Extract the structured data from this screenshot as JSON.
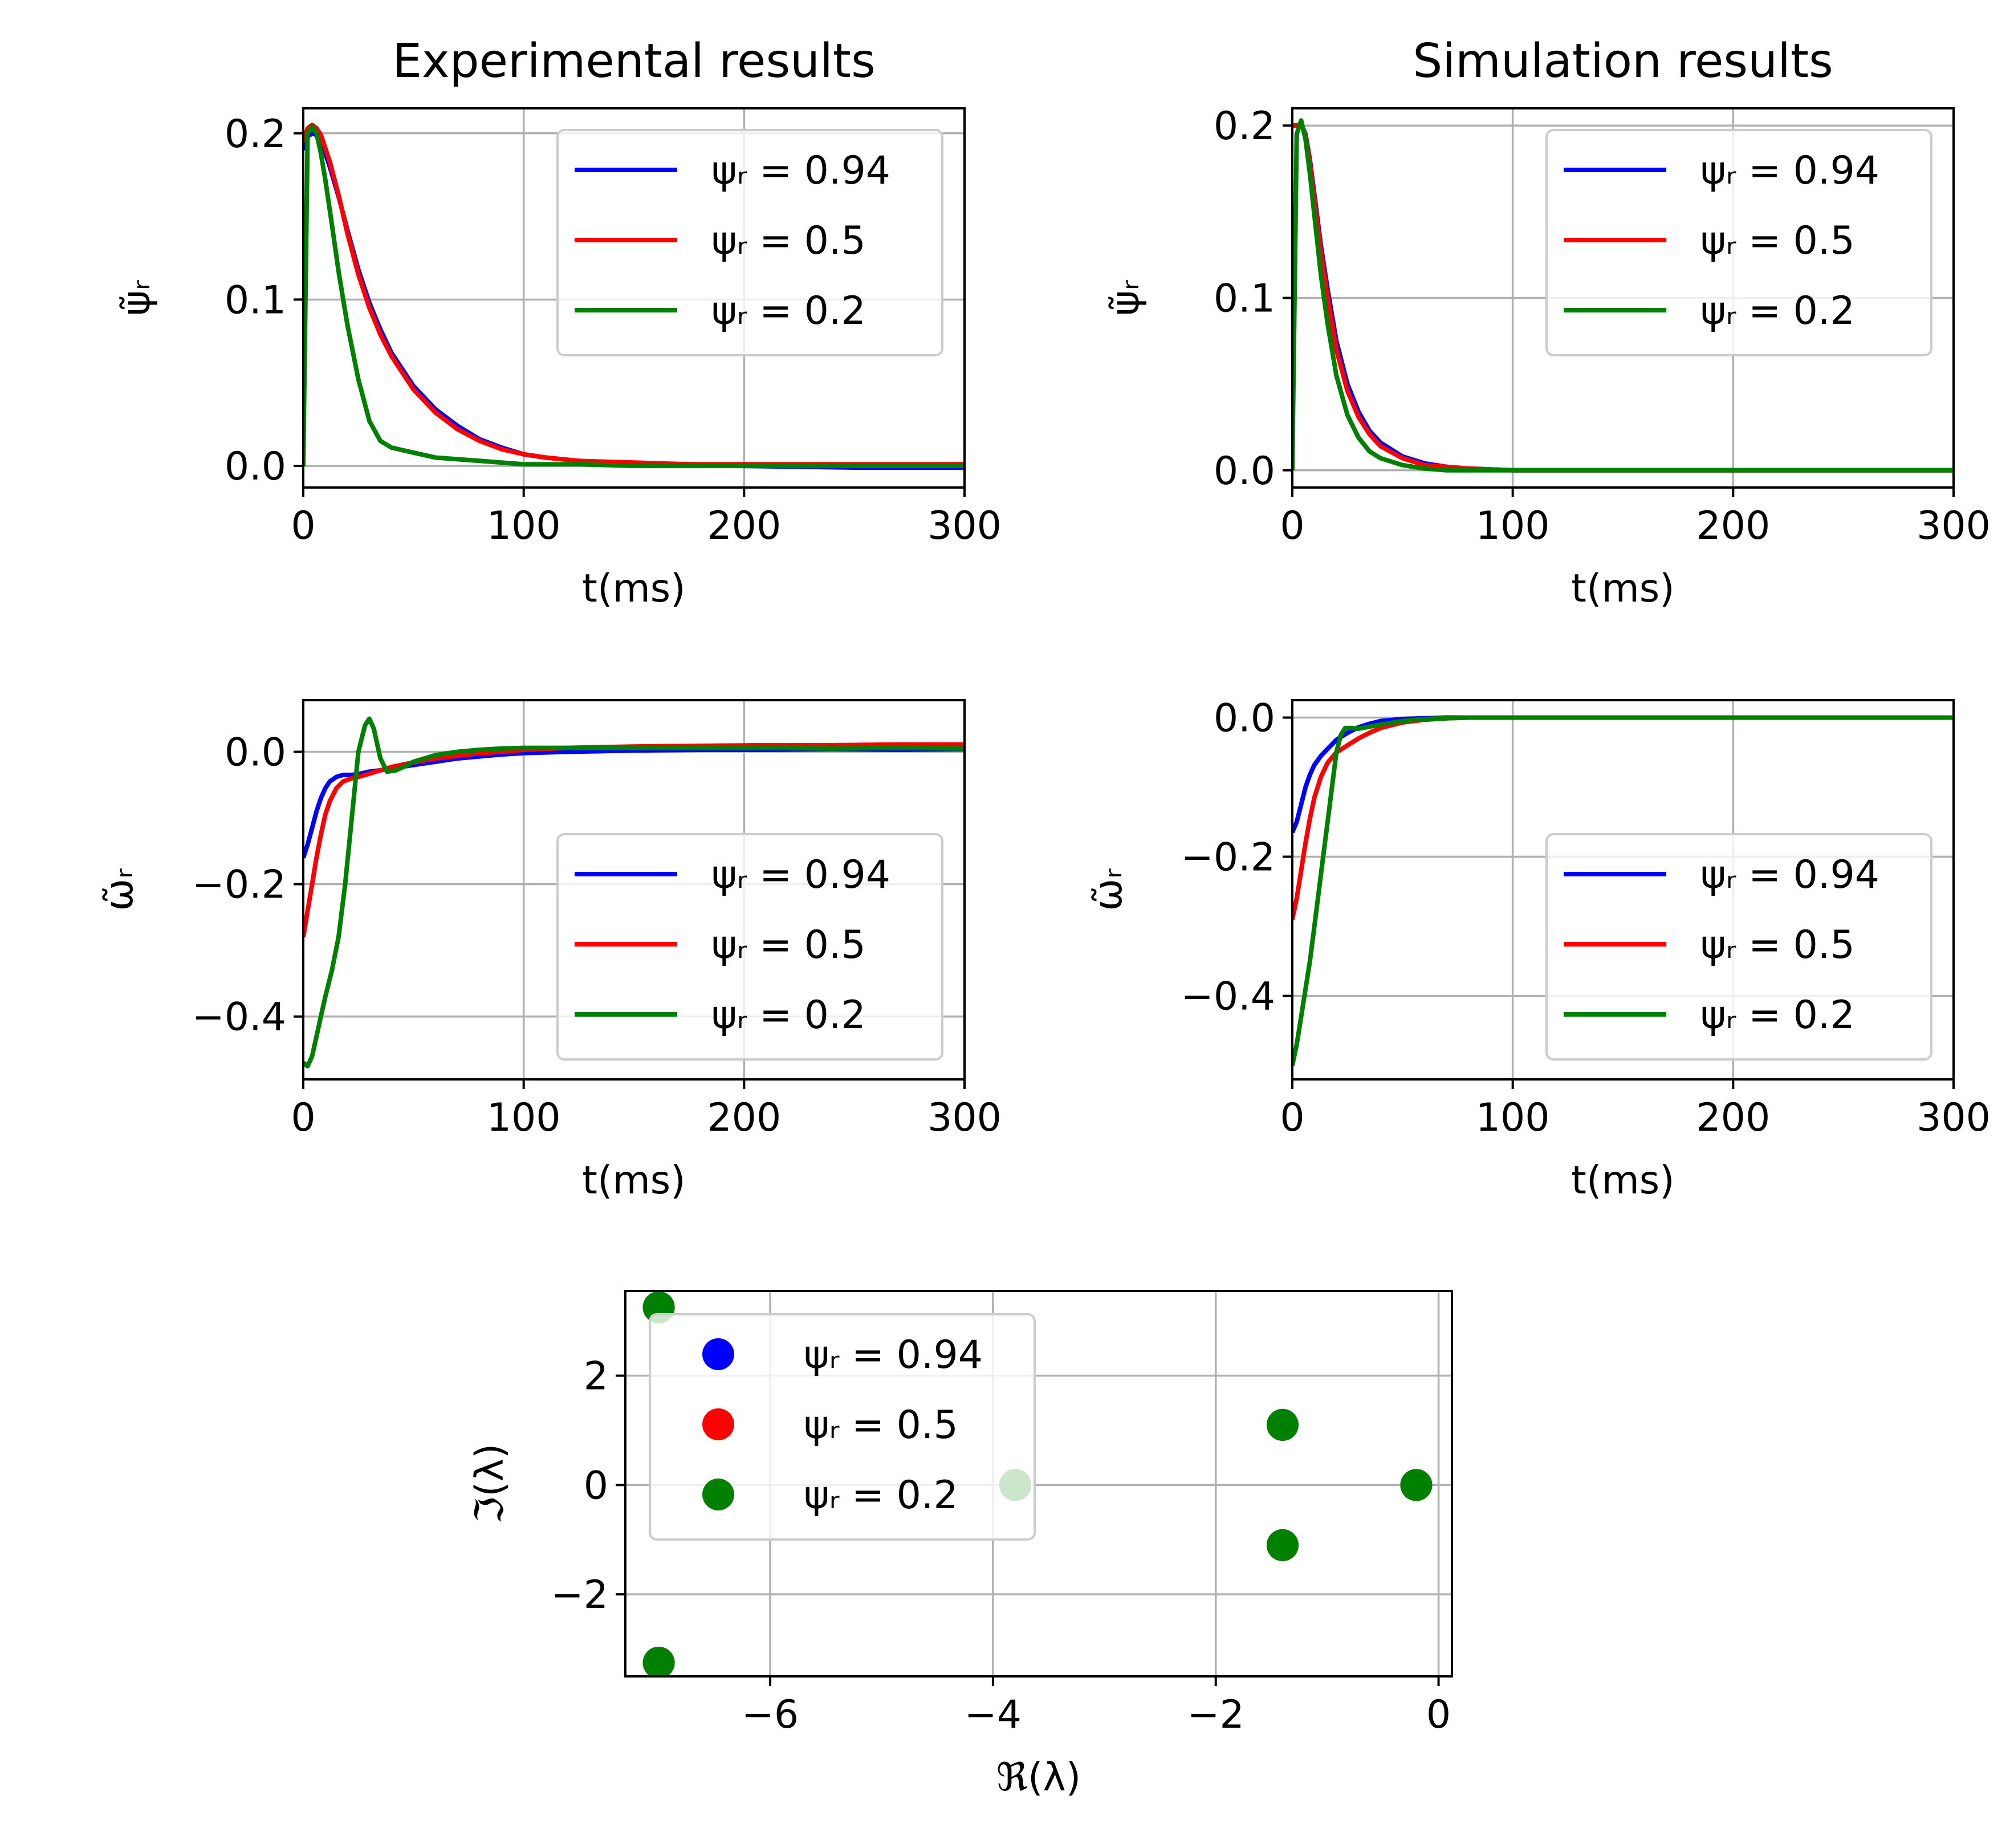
{
  "chart_data": [
    {
      "id": "exp-psi",
      "type": "line",
      "title": "Experimental results",
      "xlabel": "t(ms)",
      "ylabel": "ψ̃ᵣ",
      "xlim": [
        0,
        300
      ],
      "ylim": [
        -0.013,
        0.215
      ],
      "xticks": [
        0,
        100,
        200,
        300
      ],
      "xtick_labels": [
        "0",
        "100",
        "200",
        "300"
      ],
      "yticks": [
        0.0,
        0.1,
        0.2
      ],
      "ytick_labels": [
        "0.0",
        "0.1",
        "0.2"
      ],
      "grid": true,
      "legend_position": "top-right",
      "series": [
        {
          "name": "ψᵣ = 0.94",
          "color": "#0000ff",
          "x": [
            0,
            2,
            4,
            6,
            8,
            12,
            16,
            20,
            25,
            30,
            35,
            40,
            50,
            60,
            70,
            80,
            90,
            100,
            110,
            125,
            150,
            175,
            200,
            250,
            300
          ],
          "y": [
            0.19,
            0.198,
            0.2,
            0.199,
            0.196,
            0.18,
            0.162,
            0.142,
            0.118,
            0.098,
            0.082,
            0.068,
            0.048,
            0.034,
            0.024,
            0.016,
            0.011,
            0.007,
            0.005,
            0.003,
            0.001,
            0.0005,
            0.0,
            -0.001,
            -0.001
          ]
        },
        {
          "name": "ψᵣ = 0.5",
          "color": "#ff0000",
          "x": [
            0,
            2,
            4,
            6,
            8,
            12,
            16,
            20,
            25,
            30,
            35,
            40,
            50,
            60,
            70,
            80,
            90,
            100,
            110,
            125,
            150,
            175,
            200,
            250,
            300
          ],
          "y": [
            0.195,
            0.203,
            0.205,
            0.203,
            0.199,
            0.183,
            0.163,
            0.14,
            0.115,
            0.095,
            0.079,
            0.066,
            0.046,
            0.032,
            0.022,
            0.015,
            0.01,
            0.007,
            0.005,
            0.003,
            0.002,
            0.001,
            0.001,
            0.001,
            0.001
          ]
        },
        {
          "name": "ψᵣ = 0.2",
          "color": "#008000",
          "x": [
            0,
            2,
            4,
            6,
            8,
            10,
            13,
            16,
            20,
            25,
            30,
            35,
            40,
            50,
            60,
            70,
            80,
            100,
            125,
            150,
            200,
            250,
            300
          ],
          "y": [
            0.0,
            0.2,
            0.204,
            0.2,
            0.188,
            0.172,
            0.145,
            0.117,
            0.085,
            0.052,
            0.027,
            0.015,
            0.011,
            0.008,
            0.005,
            0.004,
            0.003,
            0.001,
            0.001,
            0.0,
            0.0,
            0.0,
            0.0
          ]
        }
      ]
    },
    {
      "id": "sim-psi",
      "type": "line",
      "title": "Simulation results",
      "xlabel": "t(ms)",
      "ylabel": "ψ̃ᵣ",
      "xlim": [
        0,
        300
      ],
      "ylim": [
        -0.01,
        0.21
      ],
      "xticks": [
        0,
        100,
        200,
        300
      ],
      "xtick_labels": [
        "0",
        "100",
        "200",
        "300"
      ],
      "yticks": [
        0.0,
        0.1,
        0.2
      ],
      "ytick_labels": [
        "0.0",
        "0.1",
        "0.2"
      ],
      "grid": true,
      "legend_position": "top-right",
      "series": [
        {
          "name": "ψᵣ = 0.94",
          "color": "#0000ff",
          "x": [
            0,
            2,
            4,
            6,
            8,
            10,
            13,
            16,
            20,
            25,
            30,
            35,
            40,
            50,
            60,
            70,
            80,
            100,
            150,
            200,
            300
          ],
          "y": [
            0.2,
            0.2,
            0.201,
            0.195,
            0.18,
            0.16,
            0.13,
            0.105,
            0.075,
            0.05,
            0.034,
            0.023,
            0.016,
            0.008,
            0.004,
            0.002,
            0.001,
            0.0,
            0.0,
            0.0,
            0.0
          ]
        },
        {
          "name": "ψᵣ = 0.5",
          "color": "#ff0000",
          "x": [
            0,
            2,
            4,
            6,
            8,
            10,
            13,
            16,
            20,
            25,
            30,
            35,
            40,
            50,
            60,
            70,
            80,
            100,
            150,
            200,
            300
          ],
          "y": [
            0.2,
            0.2,
            0.201,
            0.194,
            0.178,
            0.157,
            0.126,
            0.1,
            0.07,
            0.046,
            0.031,
            0.021,
            0.014,
            0.007,
            0.003,
            0.002,
            0.001,
            0.0,
            0.0,
            0.0,
            0.0
          ]
        },
        {
          "name": "ψᵣ = 0.2",
          "color": "#008000",
          "x": [
            0,
            2,
            4,
            6,
            8,
            10,
            13,
            16,
            20,
            25,
            30,
            35,
            40,
            50,
            60,
            70,
            80,
            100,
            150,
            200,
            300
          ],
          "y": [
            0.0,
            0.195,
            0.203,
            0.192,
            0.172,
            0.148,
            0.113,
            0.085,
            0.055,
            0.032,
            0.019,
            0.011,
            0.007,
            0.003,
            0.001,
            0.0,
            0.0,
            0.0,
            0.0,
            0.0,
            0.0
          ]
        }
      ]
    },
    {
      "id": "exp-omega",
      "type": "line",
      "xlabel": "t(ms)",
      "ylabel": "ω̃ᵣ",
      "xlim": [
        0,
        300
      ],
      "ylim": [
        -0.495,
        0.078
      ],
      "xticks": [
        0,
        100,
        200,
        300
      ],
      "xtick_labels": [
        "0",
        "100",
        "200",
        "300"
      ],
      "yticks": [
        -0.4,
        -0.2,
        0.0
      ],
      "ytick_labels": [
        "−0.4",
        "−0.2",
        "0.0"
      ],
      "grid": true,
      "legend_position": "bottom-right",
      "series": [
        {
          "name": "ψᵣ = 0.94",
          "color": "#0000ff",
          "x": [
            0,
            2,
            4,
            6,
            8,
            10,
            12,
            15,
            18,
            22,
            26,
            30,
            35,
            40,
            50,
            60,
            70,
            80,
            90,
            100,
            120,
            150,
            180,
            210,
            240,
            270,
            300
          ],
          "y": [
            -0.16,
            -0.14,
            -0.115,
            -0.09,
            -0.07,
            -0.055,
            -0.045,
            -0.038,
            -0.035,
            -0.035,
            -0.033,
            -0.03,
            -0.028,
            -0.025,
            -0.02,
            -0.015,
            -0.01,
            -0.007,
            -0.004,
            -0.002,
            0.0,
            0.002,
            0.003,
            0.003,
            0.004,
            0.003,
            0.004
          ]
        },
        {
          "name": "ψᵣ = 0.5",
          "color": "#ff0000",
          "x": [
            0,
            2,
            4,
            6,
            8,
            10,
            12,
            15,
            18,
            22,
            26,
            30,
            35,
            40,
            50,
            60,
            70,
            80,
            90,
            100,
            120,
            150,
            180,
            210,
            240,
            270,
            300
          ],
          "y": [
            -0.28,
            -0.24,
            -0.2,
            -0.16,
            -0.125,
            -0.095,
            -0.075,
            -0.055,
            -0.045,
            -0.04,
            -0.037,
            -0.033,
            -0.028,
            -0.023,
            -0.016,
            -0.01,
            -0.006,
            -0.002,
            0.0,
            0.003,
            0.006,
            0.008,
            0.009,
            0.01,
            0.01,
            0.011,
            0.011
          ]
        },
        {
          "name": "ψᵣ = 0.2",
          "color": "#008000",
          "x": [
            0,
            2,
            4,
            6,
            8,
            10,
            13,
            16,
            19,
            22,
            25,
            28,
            30,
            32,
            35,
            38,
            42,
            46,
            50,
            60,
            70,
            80,
            90,
            100,
            120,
            150,
            180,
            210,
            240,
            270,
            300
          ],
          "y": [
            -0.47,
            -0.475,
            -0.46,
            -0.43,
            -0.4,
            -0.37,
            -0.33,
            -0.28,
            -0.2,
            -0.1,
            0.0,
            0.04,
            0.05,
            0.035,
            -0.01,
            -0.03,
            -0.028,
            -0.022,
            -0.015,
            -0.005,
            0.0,
            0.003,
            0.005,
            0.006,
            0.006,
            0.006,
            0.006,
            0.006,
            0.005,
            0.006,
            0.005
          ]
        }
      ]
    },
    {
      "id": "sim-omega",
      "type": "line",
      "xlabel": "t(ms)",
      "ylabel": "ω̃ᵣ",
      "xlim": [
        0,
        300
      ],
      "ylim": [
        -0.52,
        0.025
      ],
      "xticks": [
        0,
        100,
        200,
        300
      ],
      "xtick_labels": [
        "0",
        "100",
        "200",
        "300"
      ],
      "yticks": [
        -0.4,
        -0.2,
        0.0
      ],
      "ytick_labels": [
        "−0.4",
        "−0.2",
        "0.0"
      ],
      "grid": true,
      "legend_position": "bottom-right",
      "series": [
        {
          "name": "ψᵣ = 0.94",
          "color": "#0000ff",
          "x": [
            0,
            2,
            4,
            6,
            8,
            10,
            13,
            16,
            20,
            25,
            30,
            35,
            40,
            50,
            60,
            70,
            80,
            100,
            150,
            200,
            300
          ],
          "y": [
            -0.165,
            -0.15,
            -0.125,
            -0.1,
            -0.082,
            -0.068,
            -0.055,
            -0.045,
            -0.032,
            -0.022,
            -0.014,
            -0.009,
            -0.005,
            -0.002,
            -0.001,
            0.0,
            0.0,
            0.0,
            0.0,
            0.0,
            0.0
          ]
        },
        {
          "name": "ψᵣ = 0.5",
          "color": "#ff0000",
          "x": [
            0,
            2,
            4,
            6,
            8,
            10,
            13,
            16,
            20,
            25,
            30,
            35,
            40,
            50,
            60,
            70,
            80,
            100,
            150,
            200,
            300
          ],
          "y": [
            -0.29,
            -0.26,
            -0.22,
            -0.18,
            -0.145,
            -0.115,
            -0.085,
            -0.065,
            -0.05,
            -0.04,
            -0.03,
            -0.022,
            -0.015,
            -0.007,
            -0.003,
            -0.001,
            0.0,
            0.0,
            0.0,
            0.0,
            0.0
          ]
        },
        {
          "name": "ψᵣ = 0.2",
          "color": "#008000",
          "x": [
            0,
            2,
            4,
            6,
            8,
            10,
            12,
            14,
            16,
            18,
            20,
            22,
            24,
            27,
            30,
            35,
            40,
            50,
            60,
            80,
            100,
            150,
            200,
            300
          ],
          "y": [
            -0.5,
            -0.47,
            -0.43,
            -0.39,
            -0.35,
            -0.3,
            -0.25,
            -0.2,
            -0.15,
            -0.1,
            -0.05,
            -0.025,
            -0.015,
            -0.015,
            -0.016,
            -0.013,
            -0.01,
            -0.005,
            -0.002,
            0.0,
            0.0,
            0.0,
            0.0,
            0.0
          ]
        }
      ]
    },
    {
      "id": "eigenvalues",
      "type": "scatter",
      "xlabel": "ℜ(λ)",
      "ylabel": "ℑ(λ)",
      "xlim": [
        -7.3,
        0.12
      ],
      "ylim": [
        -3.5,
        3.55
      ],
      "xticks": [
        -6,
        -4,
        -2,
        0
      ],
      "xtick_labels": [
        "−6",
        "−4",
        "−2",
        "0"
      ],
      "yticks": [
        -2,
        0,
        2
      ],
      "ytick_labels": [
        "−2",
        "0",
        "2"
      ],
      "grid": true,
      "legend_position": "upper-left",
      "series": [
        {
          "name": "ψᵣ = 0.94",
          "color": "#0000ff",
          "points": [
            [
              -7.0,
              3.25
            ],
            [
              -7.0,
              -3.25
            ],
            [
              -3.8,
              0.0
            ],
            [
              -1.4,
              1.1
            ],
            [
              -1.4,
              -1.1
            ],
            [
              -0.2,
              0.0
            ]
          ]
        },
        {
          "name": "ψᵣ = 0.5",
          "color": "#ff0000",
          "points": [
            [
              -7.0,
              3.25
            ],
            [
              -7.0,
              -3.25
            ],
            [
              -3.8,
              0.0
            ],
            [
              -1.4,
              1.1
            ],
            [
              -1.4,
              -1.1
            ],
            [
              -0.2,
              0.0
            ]
          ]
        },
        {
          "name": "ψᵣ = 0.2",
          "color": "#008000",
          "points": [
            [
              -7.0,
              3.25
            ],
            [
              -7.0,
              -3.25
            ],
            [
              -3.8,
              0.0
            ],
            [
              -1.4,
              1.1
            ],
            [
              -1.4,
              -1.1
            ],
            [
              -0.2,
              0.0
            ]
          ]
        }
      ]
    }
  ]
}
